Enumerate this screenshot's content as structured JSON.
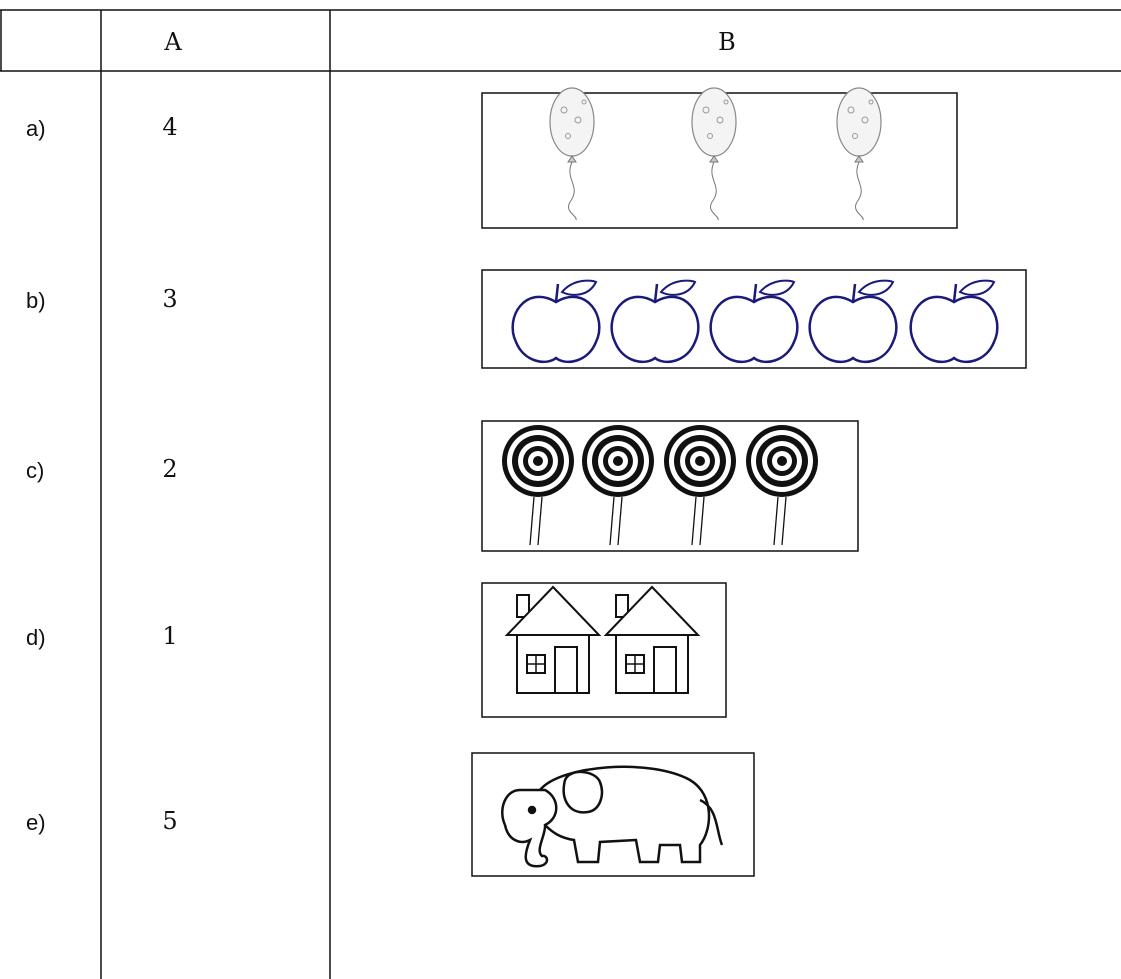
{
  "table": {
    "header": [
      "A",
      "B"
    ],
    "rows": [
      {
        "label": "a)",
        "value": 4
      },
      {
        "label": "b)",
        "value": 3
      },
      {
        "label": "c)",
        "value": 2
      },
      {
        "label": "d)",
        "value": 1
      },
      {
        "label": "e)",
        "value": 5
      }
    ]
  }
}
